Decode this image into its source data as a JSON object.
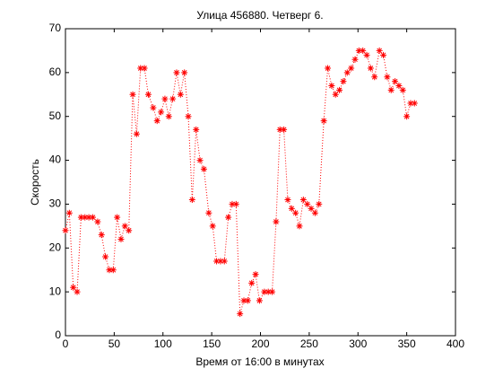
{
  "chart_data": {
    "type": "line",
    "title": "Улица 456880. Четверг 6.",
    "xlabel": "Время от 16:00 в минутах",
    "ylabel": "Скорость",
    "x": [
      0,
      4,
      8,
      12,
      16,
      20,
      24,
      28,
      33,
      37,
      41,
      45,
      49,
      53,
      57,
      61,
      65,
      69,
      73,
      77,
      81,
      85,
      90,
      94,
      98,
      102,
      106,
      110,
      114,
      118,
      122,
      126,
      130,
      134,
      138,
      142,
      147,
      151,
      155,
      159,
      163,
      167,
      171,
      175,
      179,
      183,
      187,
      191,
      195,
      199,
      204,
      208,
      212,
      216,
      220,
      224,
      228,
      232,
      236,
      240,
      244,
      248,
      252,
      256,
      260,
      265,
      269,
      273,
      277,
      281,
      285,
      289,
      293,
      297,
      301,
      305,
      309,
      313,
      317,
      322,
      326,
      330,
      334,
      338,
      342,
      346,
      350,
      354,
      358
    ],
    "series": [
      {
        "color": "#ff0000",
        "values": [
          24,
          28,
          11,
          10,
          27,
          27,
          27,
          27,
          26,
          23,
          18,
          15,
          15,
          27,
          22,
          25,
          24,
          55,
          46,
          61,
          61,
          55,
          52,
          49,
          51,
          54,
          50,
          54,
          60,
          55,
          60,
          50,
          31,
          47,
          40,
          38,
          28,
          25,
          17,
          17,
          17,
          27,
          30,
          30,
          5,
          8,
          8,
          12,
          14,
          8,
          10,
          10,
          10,
          26,
          47,
          47,
          31,
          29,
          28,
          25,
          31,
          30,
          29,
          28,
          30,
          49,
          61,
          57,
          55,
          56,
          58,
          60,
          61,
          63,
          65,
          65,
          64,
          61,
          59,
          65,
          64,
          59,
          56,
          58,
          57,
          56,
          50,
          53,
          53
        ]
      }
    ],
    "xlim": [
      0,
      400
    ],
    "xticks": [
      0,
      50,
      100,
      150,
      200,
      250,
      300,
      350,
      400
    ],
    "ylim": [
      0,
      70
    ],
    "yticks": [
      0,
      10,
      20,
      30,
      40,
      50,
      60,
      70
    ],
    "grid": false
  }
}
